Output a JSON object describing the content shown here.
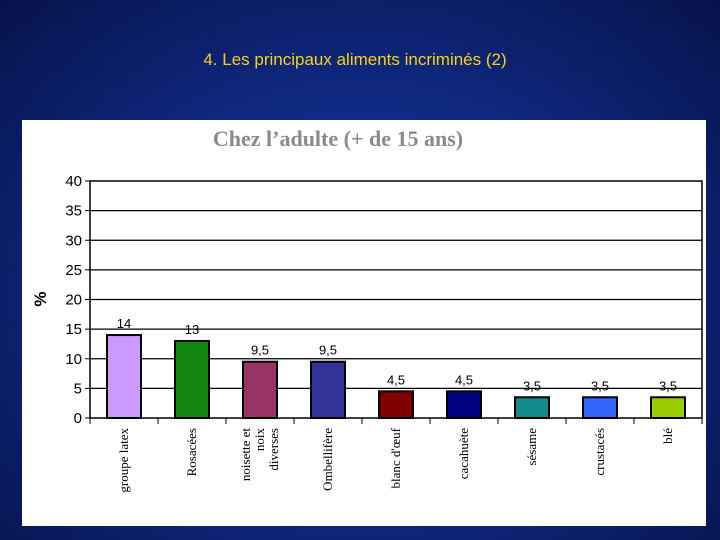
{
  "slide": {
    "title": "4. Les principaux aliments incriminés (2)"
  },
  "colors": {
    "title": "#f7d21a",
    "background": "#102a84"
  },
  "chart_data": {
    "type": "bar",
    "title": "Chez l’adulte (+ de 15 ans)",
    "ylabel": "%",
    "xlabel": "",
    "ylim": [
      0,
      40
    ],
    "yticks": [
      0,
      5,
      10,
      15,
      20,
      25,
      30,
      35,
      40
    ],
    "grid": true,
    "categories": [
      "groupe latex",
      "Rosacées",
      "noisette et noix diverses",
      "Ombellifère",
      "blanc d'œuf",
      "cacahuète",
      "sésame",
      "crustacés",
      "blé"
    ],
    "category_lines": [
      [
        "groupe latex"
      ],
      [
        "Rosacées"
      ],
      [
        "noisette et",
        "noix",
        "diverses"
      ],
      [
        "Ombellifère"
      ],
      [
        "blanc d'œuf"
      ],
      [
        "cacahuète"
      ],
      [
        "sésame"
      ],
      [
        "crustacés"
      ],
      [
        "blé"
      ]
    ],
    "values": [
      14,
      13,
      9.5,
      9.5,
      4.5,
      4.5,
      3.5,
      3.5,
      3.5
    ],
    "value_labels": [
      "14",
      "13",
      "9,5",
      "9,5",
      "4,5",
      "4,5",
      "3,5",
      "3,5",
      "3,5"
    ],
    "bar_colors": [
      "#cc99ff",
      "#108510",
      "#993366",
      "#333399",
      "#800000",
      "#000080",
      "#138a8a",
      "#3366ff",
      "#99cc00"
    ]
  }
}
